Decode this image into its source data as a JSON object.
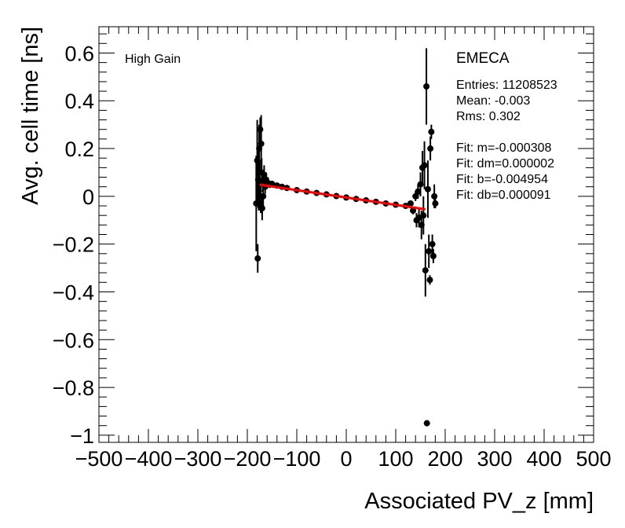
{
  "chart_data": {
    "type": "scatter",
    "title": "",
    "xlabel": "Associated PV_z [mm]",
    "ylabel": "Avg. cell time [ns]",
    "xlim": [
      -500,
      500
    ],
    "ylim": [
      -1.03,
      0.71
    ],
    "x_ticks": [
      -500,
      -400,
      -300,
      -200,
      -100,
      0,
      100,
      200,
      300,
      400,
      500
    ],
    "x_tick_labels": [
      "−500",
      "−400",
      "−300",
      "−200",
      "−100",
      "0",
      "100",
      "200",
      "300",
      "400",
      "500"
    ],
    "y_ticks": [
      -1.0,
      -0.8,
      -0.6,
      -0.4,
      -0.2,
      0.0,
      0.2,
      0.4,
      0.6
    ],
    "y_tick_labels": [
      "−1",
      "−0.8",
      "−0.6",
      "−0.4",
      "−0.2",
      "0",
      "0.2",
      "0.4",
      "0.6"
    ],
    "annotations": {
      "gain": "High Gain",
      "region": "EMECA"
    },
    "stats": [
      "Entries: 11208523",
      "Mean: -0.003",
      "Rms: 0.302",
      "",
      "Fit: m=-0.000308",
      "Fit: dm=0.000002",
      "Fit: b=-0.004954",
      "Fit: db=0.000091"
    ],
    "fit_line": {
      "x": [
        -175,
        160
      ],
      "m": -0.000308,
      "b": -0.004954,
      "color": "#ff0000"
    },
    "series": [
      {
        "name": "data",
        "color": "#000000",
        "points": [
          {
            "x": -182,
            "y": -0.03,
            "err": 0.2
          },
          {
            "x": -180,
            "y": 0.15,
            "err": 0.17
          },
          {
            "x": -179,
            "y": -0.26,
            "err": 0.06
          },
          {
            "x": -178,
            "y": 0.07,
            "err": 0.12
          },
          {
            "x": -177,
            "y": 0.02,
            "err": 0.08
          },
          {
            "x": -176,
            "y": 0.2,
            "err": 0.1
          },
          {
            "x": -175,
            "y": 0.05,
            "err": 0.1
          },
          {
            "x": -174,
            "y": 0.28,
            "err": 0.05
          },
          {
            "x": -173,
            "y": 0.0,
            "err": 0.07
          },
          {
            "x": -172,
            "y": 0.22,
            "err": 0.12
          },
          {
            "x": -171,
            "y": 0.1,
            "err": 0.06
          },
          {
            "x": -170,
            "y": -0.05,
            "err": 0.05
          },
          {
            "x": -169,
            "y": 0.06,
            "err": 0.04
          },
          {
            "x": -168,
            "y": 0.0,
            "err": 0.05
          },
          {
            "x": -166,
            "y": 0.09,
            "err": 0.04
          },
          {
            "x": -164,
            "y": 0.04,
            "err": 0.03
          },
          {
            "x": -162,
            "y": 0.07,
            "err": 0.03
          },
          {
            "x": -158,
            "y": 0.055,
            "err": 0.02
          },
          {
            "x": -154,
            "y": 0.05,
            "err": 0.015
          },
          {
            "x": -150,
            "y": 0.052,
            "err": 0.012
          },
          {
            "x": -140,
            "y": 0.045,
            "err": 0.008
          },
          {
            "x": -130,
            "y": 0.04,
            "err": 0.006
          },
          {
            "x": -120,
            "y": 0.035,
            "err": 0.005
          },
          {
            "x": -100,
            "y": 0.026,
            "err": 0.004
          },
          {
            "x": -80,
            "y": 0.02,
            "err": 0.003
          },
          {
            "x": -60,
            "y": 0.014,
            "err": 0.003
          },
          {
            "x": -40,
            "y": 0.008,
            "err": 0.003
          },
          {
            "x": -20,
            "y": 0.001,
            "err": 0.003
          },
          {
            "x": 0,
            "y": -0.005,
            "err": 0.003
          },
          {
            "x": 20,
            "y": -0.011,
            "err": 0.003
          },
          {
            "x": 40,
            "y": -0.017,
            "err": 0.003
          },
          {
            "x": 60,
            "y": -0.023,
            "err": 0.003
          },
          {
            "x": 80,
            "y": -0.03,
            "err": 0.004
          },
          {
            "x": 100,
            "y": -0.035,
            "err": 0.005
          },
          {
            "x": 120,
            "y": -0.04,
            "err": 0.006
          },
          {
            "x": 130,
            "y": -0.03,
            "err": 0.01
          },
          {
            "x": 135,
            "y": -0.06,
            "err": 0.015
          },
          {
            "x": 140,
            "y": 0.0,
            "err": 0.02
          },
          {
            "x": 142,
            "y": -0.1,
            "err": 0.03
          },
          {
            "x": 145,
            "y": 0.02,
            "err": 0.03
          },
          {
            "x": 147,
            "y": -0.09,
            "err": 0.04
          },
          {
            "x": 150,
            "y": 0.05,
            "err": 0.05
          },
          {
            "x": 152,
            "y": -0.12,
            "err": 0.06
          },
          {
            "x": 154,
            "y": 0.12,
            "err": 0.07
          },
          {
            "x": 156,
            "y": -0.08,
            "err": 0.08
          },
          {
            "x": 158,
            "y": 0.13,
            "err": 0.1
          },
          {
            "x": 160,
            "y": -0.31,
            "err": 0.11
          },
          {
            "x": 162,
            "y": 0.46,
            "err": 0.16
          },
          {
            "x": 163,
            "y": -0.95,
            "err": 0.0
          },
          {
            "x": 165,
            "y": 0.03,
            "err": 0.12
          },
          {
            "x": 167,
            "y": -0.23,
            "err": 0.07
          },
          {
            "x": 169,
            "y": -0.35,
            "err": 0.02
          },
          {
            "x": 170,
            "y": 0.2,
            "err": 0.05
          },
          {
            "x": 172,
            "y": 0.27,
            "err": 0.03
          },
          {
            "x": 174,
            "y": -0.2,
            "err": 0.04
          },
          {
            "x": 176,
            "y": -0.25,
            "err": 0.03
          },
          {
            "x": 178,
            "y": 0.0,
            "err": 0.05
          },
          {
            "x": 180,
            "y": -0.03,
            "err": 0.02
          }
        ]
      }
    ]
  }
}
